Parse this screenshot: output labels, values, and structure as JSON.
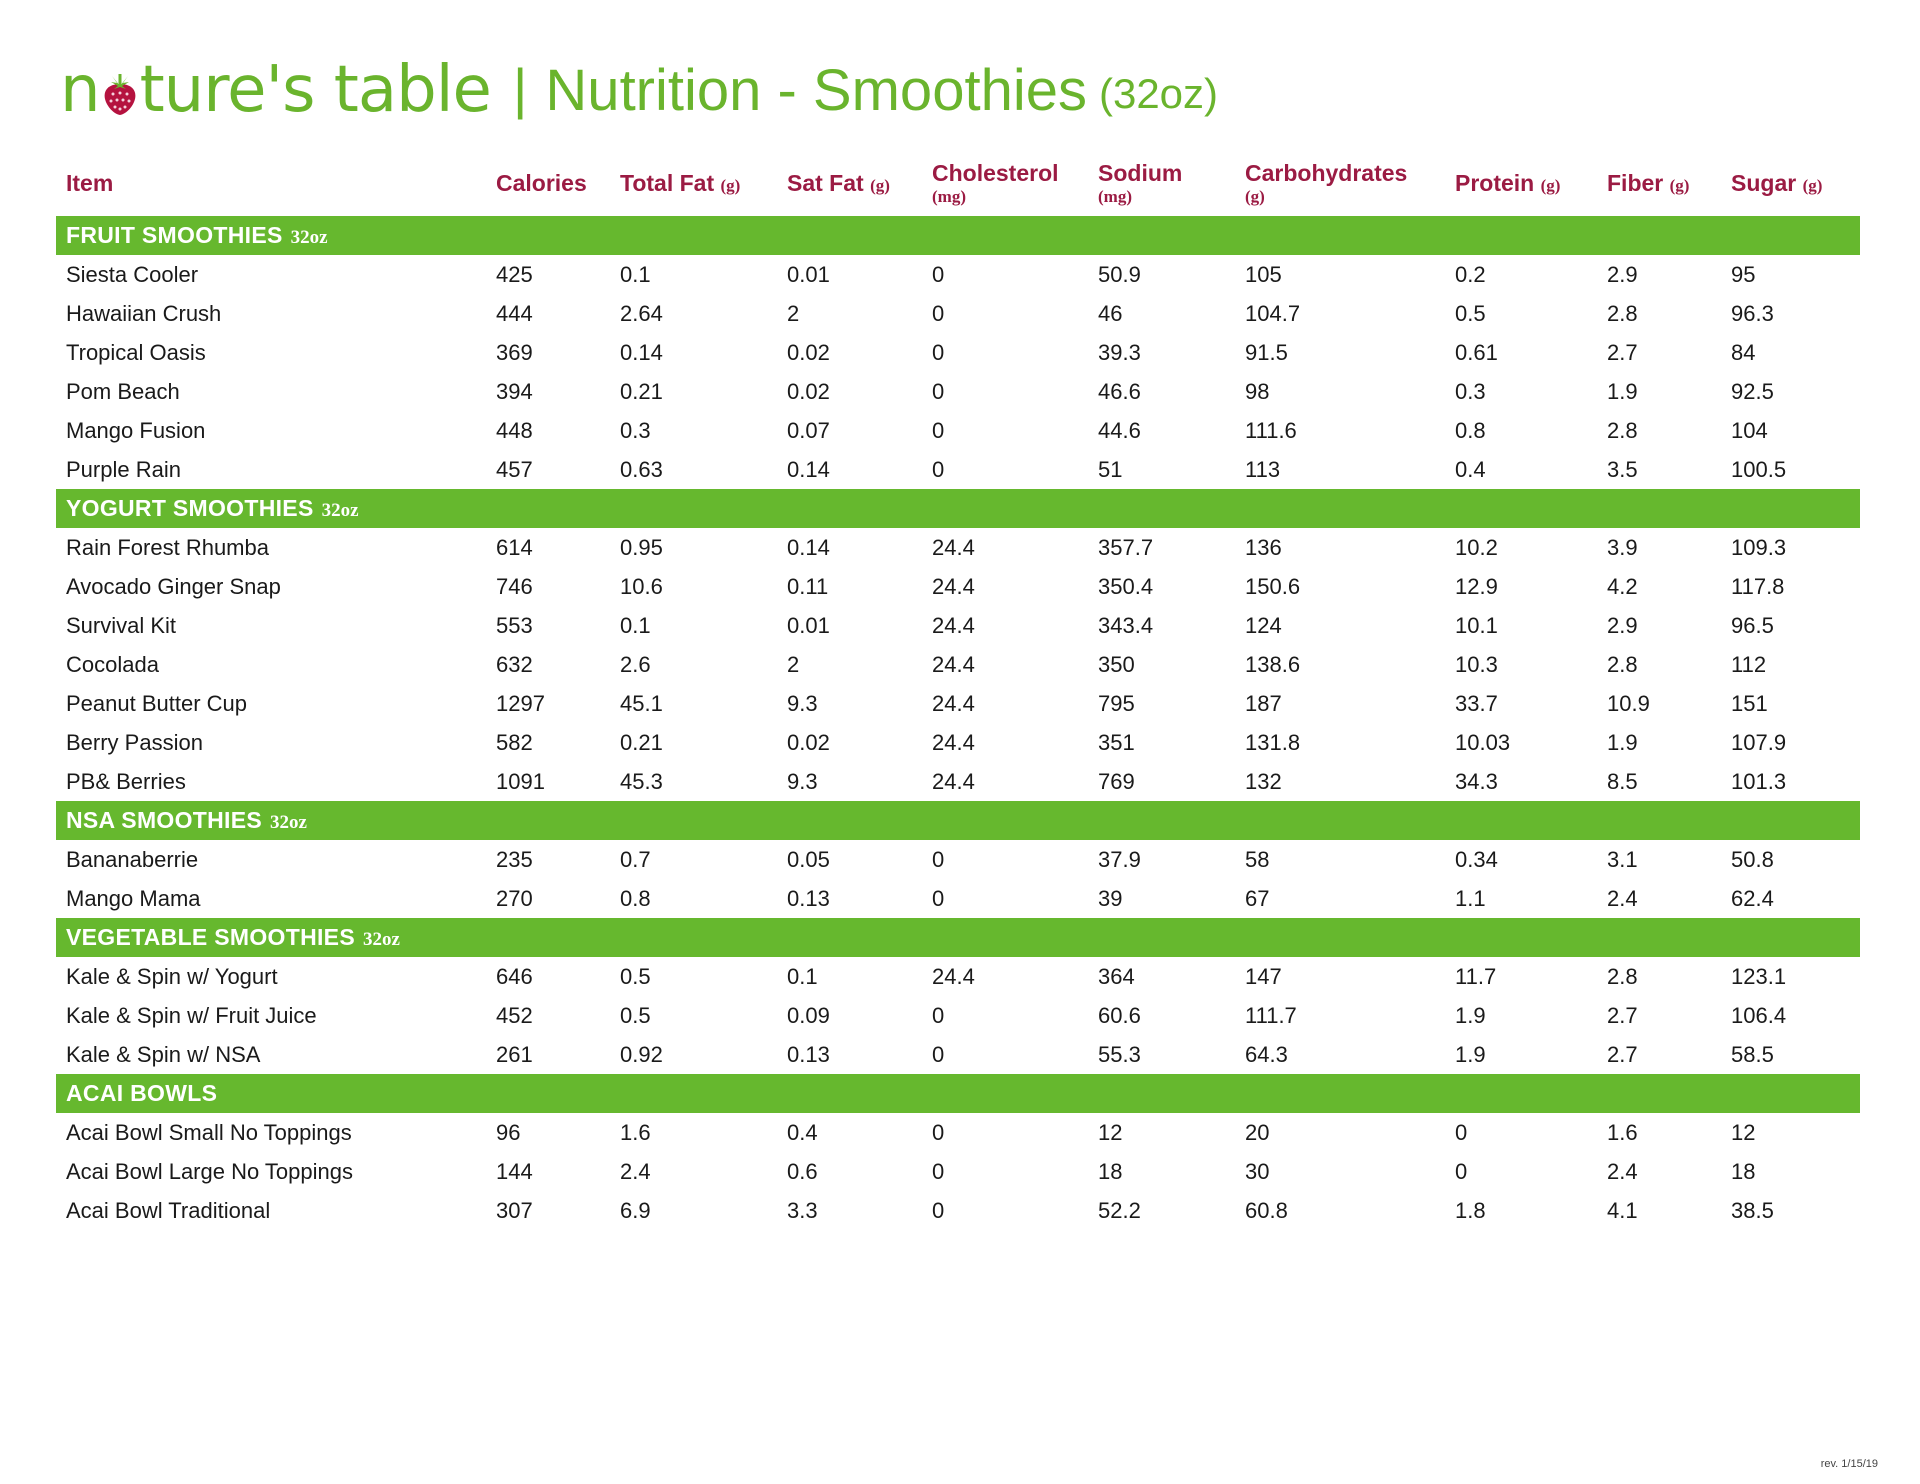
{
  "header": {
    "logo_part1": "n",
    "logo_part2": "ture's table",
    "separator": "|",
    "title": "Nutrition - Smoothies",
    "size": "(32oz)"
  },
  "colors": {
    "green": "#66b82e",
    "maroon": "#9b1b43"
  },
  "columns": [
    {
      "label": "Item",
      "unit": ""
    },
    {
      "label": "Calories",
      "unit": ""
    },
    {
      "label": "Total Fat",
      "unit": "(g)"
    },
    {
      "label": "Sat Fat",
      "unit": "(g)"
    },
    {
      "label": "Cholesterol",
      "unit": "(mg)"
    },
    {
      "label": "Sodium",
      "unit": "(mg)"
    },
    {
      "label": "Carbohydrates",
      "unit": "(g)"
    },
    {
      "label": "Protein",
      "unit": "(g)"
    },
    {
      "label": "Fiber",
      "unit": "(g)"
    },
    {
      "label": "Sugar",
      "unit": "(g)"
    }
  ],
  "sections": [
    {
      "name": "FRUIT SMOOTHIES",
      "size": "32oz",
      "rows": [
        [
          "Siesta Cooler",
          "425",
          "0.1",
          "0.01",
          "0",
          "50.9",
          "105",
          "0.2",
          "2.9",
          "95"
        ],
        [
          "Hawaiian Crush",
          "444",
          "2.64",
          "2",
          "0",
          "46",
          "104.7",
          "0.5",
          "2.8",
          "96.3"
        ],
        [
          "Tropical Oasis",
          "369",
          "0.14",
          "0.02",
          "0",
          "39.3",
          "91.5",
          "0.61",
          "2.7",
          "84"
        ],
        [
          "Pom Beach",
          "394",
          "0.21",
          "0.02",
          "0",
          "46.6",
          "98",
          "0.3",
          "1.9",
          "92.5"
        ],
        [
          "Mango Fusion",
          "448",
          "0.3",
          "0.07",
          "0",
          "44.6",
          "111.6",
          "0.8",
          "2.8",
          "104"
        ],
        [
          "Purple Rain",
          "457",
          "0.63",
          "0.14",
          "0",
          "51",
          "113",
          "0.4",
          "3.5",
          "100.5"
        ]
      ]
    },
    {
      "name": "YOGURT SMOOTHIES",
      "size": "32oz",
      "rows": [
        [
          "Rain Forest Rhumba",
          "614",
          "0.95",
          "0.14",
          "24.4",
          "357.7",
          "136",
          "10.2",
          "3.9",
          "109.3"
        ],
        [
          "Avocado Ginger Snap",
          "746",
          "10.6",
          "0.11",
          "24.4",
          "350.4",
          "150.6",
          "12.9",
          "4.2",
          "117.8"
        ],
        [
          "Survival Kit",
          "553",
          "0.1",
          "0.01",
          "24.4",
          "343.4",
          "124",
          "10.1",
          "2.9",
          "96.5"
        ],
        [
          "Cocolada",
          "632",
          "2.6",
          "2",
          "24.4",
          "350",
          "138.6",
          "10.3",
          "2.8",
          "112"
        ],
        [
          "Peanut Butter Cup",
          "1297",
          "45.1",
          "9.3",
          "24.4",
          "795",
          "187",
          "33.7",
          "10.9",
          "151"
        ],
        [
          "Berry Passion",
          "582",
          "0.21",
          "0.02",
          "24.4",
          "351",
          "131.8",
          "10.03",
          "1.9",
          "107.9"
        ],
        [
          "PB& Berries",
          "1091",
          "45.3",
          "9.3",
          "24.4",
          "769",
          "132",
          "34.3",
          "8.5",
          "101.3"
        ]
      ]
    },
    {
      "name": "NSA SMOOTHIES",
      "size": "32oz",
      "rows": [
        [
          "Bananaberrie",
          "235",
          "0.7",
          "0.05",
          "0",
          "37.9",
          "58",
          "0.34",
          "3.1",
          "50.8"
        ],
        [
          "Mango Mama",
          "270",
          "0.8",
          "0.13",
          "0",
          "39",
          "67",
          "1.1",
          "2.4",
          "62.4"
        ]
      ]
    },
    {
      "name": "VEGETABLE SMOOTHIES",
      "size": "32oz",
      "rows": [
        [
          "Kale & Spin w/ Yogurt",
          "646",
          "0.5",
          "0.1",
          "24.4",
          "364",
          "147",
          "11.7",
          "2.8",
          "123.1"
        ],
        [
          "Kale & Spin w/ Fruit Juice",
          "452",
          "0.5",
          "0.09",
          "0",
          "60.6",
          "111.7",
          "1.9",
          "2.7",
          "106.4"
        ],
        [
          "Kale & Spin w/ NSA",
          "261",
          "0.92",
          "0.13",
          "0",
          "55.3",
          "64.3",
          "1.9",
          "2.7",
          "58.5"
        ]
      ]
    },
    {
      "name": "ACAI BOWLS",
      "size": "",
      "rows": [
        [
          "Acai Bowl Small No Toppings",
          "96",
          "1.6",
          "0.4",
          "0",
          "12",
          "20",
          "0",
          "1.6",
          "12"
        ],
        [
          "Acai Bowl Large No Toppings",
          "144",
          "2.4",
          "0.6",
          "0",
          "18",
          "30",
          "0",
          "2.4",
          "18"
        ],
        [
          "Acai Bowl Traditional",
          "307",
          "6.9",
          "3.3",
          "0",
          "52.2",
          "60.8",
          "1.8",
          "4.1",
          "38.5"
        ]
      ]
    }
  ],
  "footer": {
    "revision": "rev. 1/15/19"
  }
}
